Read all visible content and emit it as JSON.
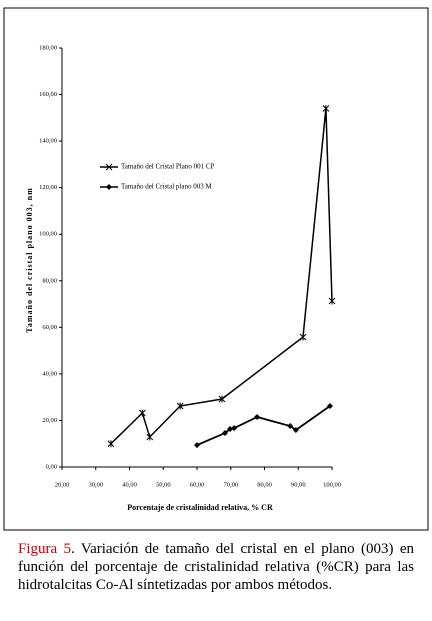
{
  "chart_data": {
    "type": "line",
    "y_label": "Tamaño del cristal plano 003, nm",
    "x_label": "Porcentaje de cristalinidad relativa, % CR",
    "xlim": [
      20,
      100
    ],
    "xticks": [
      {
        "value": 20,
        "label": "20,00"
      },
      {
        "value": 30,
        "label": "30,00"
      },
      {
        "value": 40,
        "label": "40,00"
      },
      {
        "value": 50,
        "label": "50,00"
      },
      {
        "value": 60,
        "label": "60,00"
      },
      {
        "value": 70,
        "label": "70,00"
      },
      {
        "value": 80,
        "label": "80,00"
      },
      {
        "value": 90,
        "label": "90,00"
      },
      {
        "value": 100,
        "label": "100,00"
      }
    ],
    "ylim": [
      0,
      180
    ],
    "yticks": [
      {
        "value": 0,
        "label": "0,00"
      },
      {
        "value": 20,
        "label": "20,00"
      },
      {
        "value": 40,
        "label": "40,00"
      },
      {
        "value": 60,
        "label": "60,00"
      },
      {
        "value": 80,
        "label": "80,00"
      },
      {
        "value": 100,
        "label": "100,00"
      },
      {
        "value": 120,
        "label": "120,00"
      },
      {
        "value": 140,
        "label": "140,00"
      },
      {
        "value": 160,
        "label": "160,00"
      },
      {
        "value": 180,
        "label": "180,00"
      }
    ],
    "legend": "center left",
    "series": [
      {
        "name": "Tamaño del Cristal Plano 001  CP",
        "color": "#000000",
        "marker": "star",
        "x": [
          34.5,
          43.8,
          46,
          55,
          67.4,
          91.4,
          98.2,
          100
        ],
        "values": [
          10,
          23.2,
          12.9,
          26.2,
          29.2,
          55.8,
          154,
          71.3
        ]
      },
      {
        "name": "Tamaño del Cristal plano 003 M",
        "color": "#000000",
        "marker": "diamond",
        "x": [
          60,
          68.3,
          69.8,
          71,
          77.8,
          87.6,
          89.3,
          99.4
        ],
        "values": [
          9.4,
          14.6,
          16.3,
          16.7,
          21.5,
          17.6,
          15.9,
          26.2
        ]
      }
    ]
  },
  "caption": {
    "label": "Figura 5",
    "text": ". Variación de tamaño del cristal en el plano (003) en función del porcentaje de cristalinidad relativa (%CR) para las hidrotalcitas Co-Al síntetizadas por ambos métodos."
  }
}
